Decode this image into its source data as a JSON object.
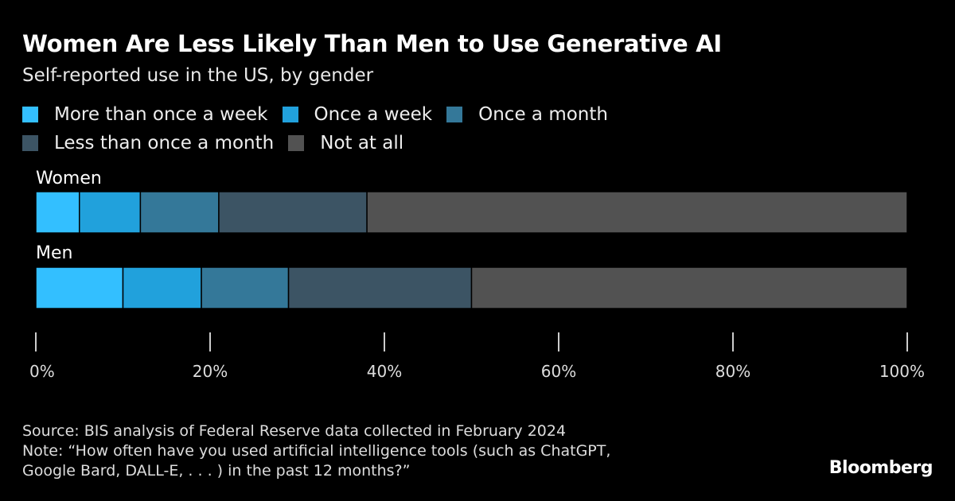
{
  "chart_data": {
    "type": "bar",
    "orientation": "horizontal",
    "stacked": true,
    "title": "Women Are Less Likely Than Men to Use Generative AI",
    "subtitle": "Self-reported use in the US, by gender",
    "categories": [
      "Women",
      "Men"
    ],
    "series": [
      {
        "name": "More than once a week",
        "color": "#33bfff",
        "values": [
          5,
          10
        ]
      },
      {
        "name": "Once a week",
        "color": "#21a1dc",
        "values": [
          7,
          9
        ]
      },
      {
        "name": "Once a month",
        "color": "#347899",
        "values": [
          9,
          10
        ]
      },
      {
        "name": "Less than once a month",
        "color": "#3c5464",
        "values": [
          17,
          21
        ]
      },
      {
        "name": "Not at all",
        "color": "#525252",
        "values": [
          62,
          50
        ]
      }
    ],
    "xlim": [
      0,
      100
    ],
    "xticks": [
      "0%",
      "20%",
      "40%",
      "60%",
      "80%",
      "100%"
    ],
    "legend_placement": "top",
    "grid": false
  },
  "footer": {
    "source": "Source: BIS analysis of Federal Reserve data collected in February 2024",
    "note_line1": "Note: “How often have you used artificial intelligence tools (such as ChatGPT,",
    "note_line2": "Google Bard, DALL-E, . . . ) in the past 12 months?”",
    "logo": "Bloomberg"
  }
}
